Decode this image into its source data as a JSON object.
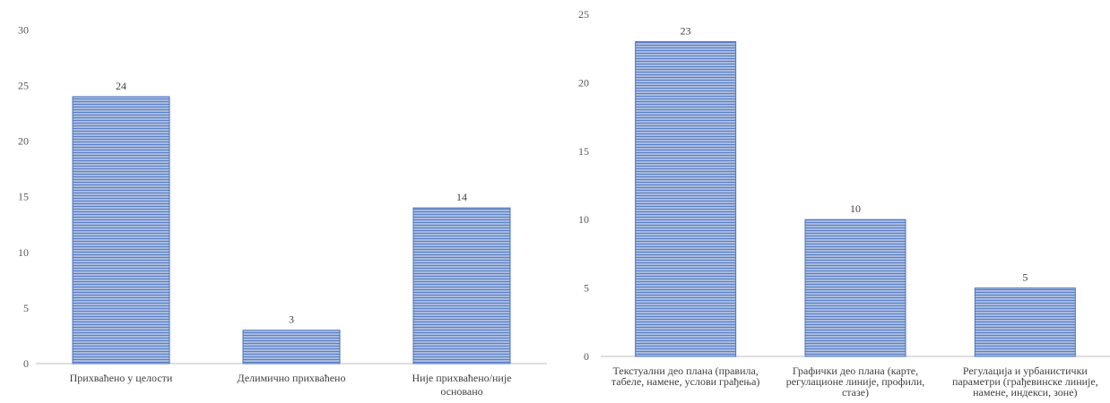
{
  "colors": {
    "bar_fill": "#9db1dc",
    "bar_stripe": "#4a72c0",
    "bar_edge": "#4a72c0",
    "axis": "#bfbfbf",
    "text": "#404040"
  },
  "chart_data": [
    {
      "type": "bar",
      "categories": [
        [
          "Прихваћено у целости"
        ],
        [
          "Делимично прихваћено"
        ],
        [
          "Није прихваћено/није",
          "основано"
        ]
      ],
      "values": [
        24,
        3,
        14
      ],
      "data_labels": [
        "24",
        "3",
        "14"
      ],
      "yticks": [
        "0",
        "5",
        "10",
        "15",
        "20",
        "25",
        "30"
      ],
      "ylim": [
        0,
        30
      ],
      "title": "",
      "xlabel": "",
      "ylabel": "",
      "grid": false,
      "legend": "none"
    },
    {
      "type": "bar",
      "categories": [
        [
          "Текстуални део плана (правила,",
          "табеле, намене, услови грађења)"
        ],
        [
          "Графички део плана (карте,",
          "регулационе линије, профили,",
          "стазе)"
        ],
        [
          "Регулација и урбанистички",
          "параметри (грађевинске линије,",
          "намене, индекси, зоне)"
        ]
      ],
      "values": [
        23,
        10,
        5
      ],
      "data_labels": [
        "23",
        "10",
        "5"
      ],
      "yticks": [
        "0",
        "5",
        "10",
        "15",
        "20",
        "25"
      ],
      "ylim": [
        0,
        25
      ],
      "title": "",
      "xlabel": "",
      "ylabel": "",
      "grid": false,
      "legend": "none"
    }
  ]
}
